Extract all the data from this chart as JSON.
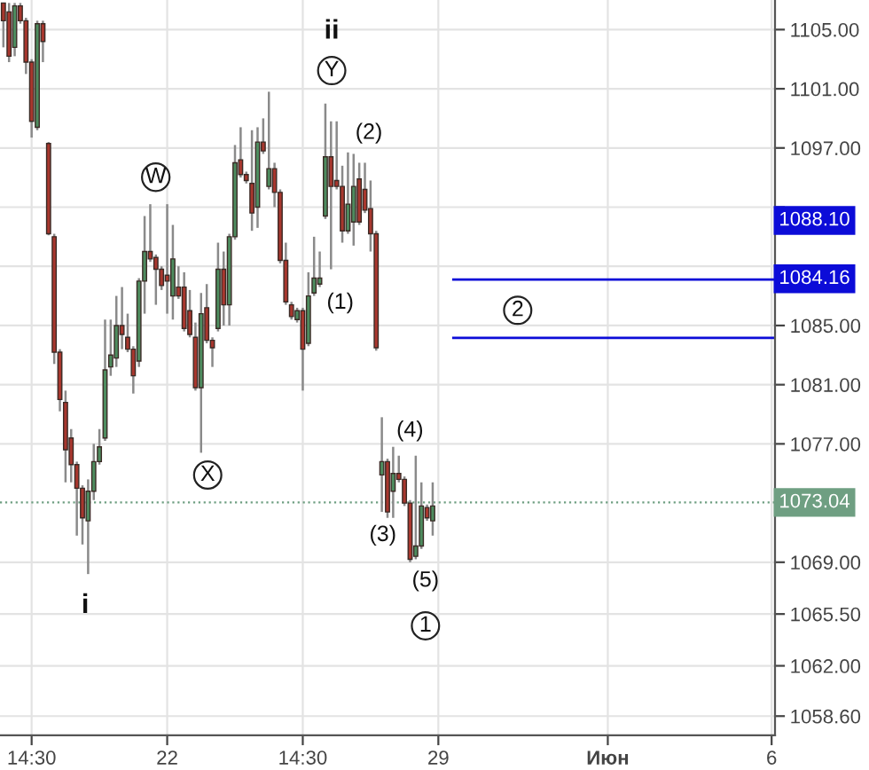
{
  "chart_data": {
    "type": "candlestick",
    "categories": [
      null,
      null,
      null,
      null,
      null,
      "14:30",
      null,
      null,
      null,
      null,
      null,
      null,
      null,
      null,
      null,
      null,
      null,
      null,
      null,
      null,
      null,
      null,
      null,
      null,
      null,
      null,
      null,
      null,
      null,
      "22",
      null,
      null,
      null,
      null,
      null,
      null,
      null,
      null,
      null,
      null,
      null,
      null,
      null,
      null,
      null,
      null,
      null,
      null,
      null,
      null,
      null,
      null,
      null,
      "14:30",
      null,
      null,
      null,
      null,
      null,
      null,
      null,
      null,
      null,
      null,
      null,
      null,
      null,
      null,
      null,
      null,
      null,
      null,
      null,
      null,
      null,
      null,
      null,
      "29",
      null,
      null,
      null,
      null,
      null,
      null,
      null,
      null,
      null,
      null,
      null,
      null,
      null,
      null,
      null,
      null,
      null,
      null,
      null,
      null,
      null,
      null,
      null,
      null,
      null,
      null,
      null,
      null,
      null,
      "Июн",
      null,
      null,
      null,
      null,
      null,
      null,
      null,
      null,
      null,
      null,
      null,
      null,
      null,
      null,
      null,
      null,
      null,
      null,
      null,
      null,
      null,
      null,
      null,
      null,
      null,
      null,
      null,
      null,
      "6"
    ],
    "ohlc": [
      [
        1106.8,
        1106.8,
        1103.8,
        1105.6
      ],
      [
        1106.2,
        1106.8,
        1102.8,
        1103.2
      ],
      [
        1103.8,
        1106.8,
        1103.2,
        1106.6
      ],
      [
        1106.6,
        1106.8,
        1105.4,
        1105.6
      ],
      [
        1105.6,
        1105.8,
        1102.0,
        1102.8
      ],
      [
        1102.8,
        1103.0,
        1097.7,
        1098.8
      ],
      [
        1098.4,
        1105.6,
        1098.2,
        1105.4
      ],
      [
        1105.4,
        1105.6,
        1102.8,
        1104.2
      ],
      [
        1097.3,
        1097.4,
        1091.1,
        1091.2
      ],
      [
        1091.0,
        1091.2,
        1082.4,
        1083.2
      ],
      [
        1083.2,
        1083.4,
        1079.2,
        1080.0
      ],
      [
        1079.8,
        1080.6,
        1074.4,
        1076.6
      ],
      [
        1077.4,
        1078.0,
        1074.4,
        1075.6
      ],
      [
        1075.6,
        1075.8,
        1070.8,
        1074.0
      ],
      [
        1074.0,
        1074.2,
        1070.2,
        1072.0
      ],
      [
        1071.8,
        1074.6,
        1068.2,
        1073.8
      ],
      [
        1073.8,
        1077.0,
        1073.2,
        1075.8
      ],
      [
        1075.8,
        1078.0,
        1075.6,
        1076.8
      ],
      [
        1077.4,
        1085.4,
        1077.2,
        1082.0
      ],
      [
        1082.2,
        1085.4,
        1081.6,
        1083.0
      ],
      [
        1082.8,
        1087.0,
        1082.2,
        1085.0
      ],
      [
        1085.0,
        1087.6,
        1083.4,
        1084.4
      ],
      [
        1084.2,
        1085.8,
        1083.2,
        1083.4
      ],
      [
        1083.4,
        1083.6,
        1080.4,
        1081.6
      ],
      [
        1082.6,
        1088.2,
        1082.2,
        1088.0
      ],
      [
        1088.0,
        1092.4,
        1085.8,
        1090.0
      ],
      [
        1090.0,
        1093.2,
        1089.3,
        1089.5
      ],
      [
        1089.6,
        1089.8,
        1086.4,
        1088.8
      ],
      [
        1088.8,
        1089.0,
        1087.4,
        1087.7
      ],
      [
        1088.4,
        1093.2,
        1085.8,
        1088.0
      ],
      [
        1087.0,
        1091.8,
        1085.4,
        1089.5
      ],
      [
        1087.6,
        1089.0,
        1086.8,
        1087.0
      ],
      [
        1087.6,
        1088.6,
        1084.6,
        1084.8
      ],
      [
        1086.0,
        1087.4,
        1084.2,
        1084.4
      ],
      [
        1084.2,
        1085.2,
        1080.6,
        1080.8
      ],
      [
        1080.8,
        1087.2,
        1076.4,
        1085.8
      ],
      [
        1086.2,
        1087.8,
        1083.8,
        1084.0
      ],
      [
        1084.0,
        1084.2,
        1082.2,
        1083.5
      ],
      [
        1084.8,
        1090.6,
        1084.6,
        1088.8
      ],
      [
        1088.8,
        1090.0,
        1085.0,
        1086.4
      ],
      [
        1086.4,
        1091.2,
        1085.0,
        1091.0
      ],
      [
        1091.0,
        1097.2,
        1090.8,
        1096.0
      ],
      [
        1096.2,
        1098.4,
        1095.0,
        1095.2
      ],
      [
        1095.2,
        1095.4,
        1094.6,
        1094.8
      ],
      [
        1094.6,
        1098.2,
        1091.4,
        1092.6
      ],
      [
        1093.0,
        1098.4,
        1091.6,
        1097.4
      ],
      [
        1097.4,
        1099.0,
        1096.6,
        1096.8
      ],
      [
        1094.4,
        1100.8,
        1094.2,
        1095.6
      ],
      [
        1095.6,
        1096.0,
        1093.0,
        1094.0
      ],
      [
        1094.0,
        1094.2,
        1089.2,
        1089.4
      ],
      [
        1089.4,
        1090.6,
        1086.4,
        1086.6
      ],
      [
        1086.4,
        1086.6,
        1085.4,
        1085.6
      ],
      [
        1085.4,
        1086.2,
        1085.2,
        1086.0
      ],
      [
        1086.0,
        1086.2,
        1080.6,
        1083.4
      ],
      [
        1083.8,
        1088.6,
        1083.6,
        1087.0
      ],
      [
        1087.2,
        1091.0,
        1087.0,
        1088.2
      ],
      [
        1087.8,
        1090.0,
        1087.6,
        1088.2
      ],
      [
        1092.4,
        1100.0,
        1092.2,
        1096.4
      ],
      [
        1096.4,
        1098.8,
        1088.8,
        1094.4
      ],
      [
        1094.8,
        1098.8,
        1094.2,
        1094.4
      ],
      [
        1094.4,
        1095.8,
        1090.6,
        1091.4
      ],
      [
        1091.4,
        1096.7,
        1091.2,
        1093.2
      ],
      [
        1092.0,
        1096.6,
        1090.4,
        1094.4
      ],
      [
        1094.9,
        1096.0,
        1091.8,
        1092.0
      ],
      [
        1094.2,
        1096.0,
        1092.6,
        1092.8
      ],
      [
        1092.9,
        1094.8,
        1090.0,
        1091.2
      ],
      [
        1091.2,
        1091.4,
        1083.3,
        1083.5
      ],
      [
        1074.9,
        1078.8,
        1072.4,
        1075.8
      ],
      [
        1075.8,
        1076.0,
        1072.0,
        1072.4
      ],
      [
        1073.8,
        1076.8,
        1072.0,
        1075.0
      ],
      [
        1075.0,
        1076.2,
        1074.4,
        1074.6
      ],
      [
        1074.6,
        1074.8,
        1072.8,
        1073.0
      ],
      [
        1073.0,
        1073.2,
        1069.0,
        1069.2
      ],
      [
        1069.4,
        1076.2,
        1069.2,
        1070.1
      ],
      [
        1070.1,
        1074.4,
        1069.9,
        1072.8
      ],
      [
        1072.7,
        1072.9,
        1071.8,
        1072.0
      ],
      [
        1071.8,
        1074.4,
        1070.8,
        1072.8
      ],
      null,
      null,
      null,
      null,
      null,
      null,
      null,
      null,
      null,
      null,
      null,
      null,
      null,
      null,
      null,
      null,
      null,
      null,
      null,
      null,
      null,
      null,
      null,
      null,
      null,
      null,
      null,
      null,
      null,
      null,
      null,
      null,
      null,
      null,
      null,
      null,
      null,
      null,
      null,
      null,
      null,
      null,
      null,
      null,
      null,
      null,
      null,
      null,
      null,
      null,
      null,
      null,
      null,
      null,
      null,
      null,
      null,
      null,
      null,
      null
    ],
    "ylim": [
      1057.3,
      1107.0
    ],
    "yticks": [
      {
        "value": 1105,
        "label": "1105.00"
      },
      {
        "value": 1101,
        "label": "1101.00"
      },
      {
        "value": 1097,
        "label": "1097.00"
      },
      {
        "value": 1093,
        "label": null
      },
      {
        "value": 1089,
        "label": null
      },
      {
        "value": 1085,
        "label": "1085.00"
      },
      {
        "value": 1081,
        "label": "1081.00"
      },
      {
        "value": 1077,
        "label": "1077.00"
      },
      {
        "value": 1069,
        "label": "1069.00"
      },
      {
        "value": 1065.5,
        "label": "1065.50"
      },
      {
        "value": 1062,
        "label": "1062.00"
      },
      {
        "value": 1058.6,
        "label": "1058.60"
      }
    ],
    "grid": true,
    "ref_lines": [
      {
        "axis": "y",
        "value": 1088.1,
        "label": "1088.10",
        "color": "#0c0cd8"
      },
      {
        "axis": "y",
        "value": 1084.16,
        "label": "1084.16",
        "color": "#0c0cd8"
      },
      {
        "axis": "y",
        "value": 1073.04,
        "label": "1073.04",
        "color": "#6f9f82",
        "line_style": "dotted"
      }
    ],
    "annotations": [
      "i",
      "ii",
      "Y",
      "W",
      "X",
      "(1)",
      "(2)",
      "(3)",
      "(4)",
      "(5)",
      "1",
      "2"
    ]
  }
}
